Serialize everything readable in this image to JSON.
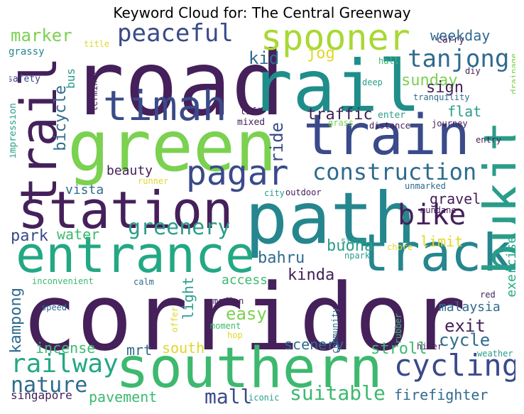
{
  "title": "Keyword Cloud for: The Central Greenway",
  "words": [
    {
      "text": "corridor",
      "color": "#45205a"
    },
    {
      "text": "road",
      "color": "#45205a"
    },
    {
      "text": "rail",
      "color": "#1f8e8a"
    },
    {
      "text": "path",
      "color": "#25868e"
    },
    {
      "text": "green",
      "color": "#7bd150"
    },
    {
      "text": "southern",
      "color": "#3db96f"
    },
    {
      "text": "train",
      "color": "#3a4a8a"
    },
    {
      "text": "station",
      "color": "#45205a"
    },
    {
      "text": "entrance",
      "color": "#23a884"
    },
    {
      "text": "track",
      "color": "#25868e"
    },
    {
      "text": "spooner",
      "color": "#a9d834"
    },
    {
      "text": "timah",
      "color": "#3a4a8a"
    },
    {
      "text": "pagar",
      "color": "#3a4a8a"
    },
    {
      "text": "bukit",
      "color": "#2a9d8a"
    },
    {
      "text": "trail",
      "color": "#45205a"
    },
    {
      "text": "construction",
      "color": "#2f6b8e"
    },
    {
      "text": "cycling",
      "color": "#3a4a8a"
    },
    {
      "text": "bike",
      "color": "#45205a"
    },
    {
      "text": "railway",
      "color": "#23a884"
    },
    {
      "text": "peaceful",
      "color": "#3a4a8a"
    },
    {
      "text": "greenery",
      "color": "#2a9d8a"
    },
    {
      "text": "tanjong",
      "color": "#2f6b8e"
    },
    {
      "text": "mall",
      "color": "#3a4a8a"
    },
    {
      "text": "suitable",
      "color": "#3db96f"
    },
    {
      "text": "nature",
      "color": "#2f6b8e"
    },
    {
      "text": "marker",
      "color": "#7bd150"
    },
    {
      "text": "kid",
      "color": "#2f6b8e"
    },
    {
      "text": "jog",
      "color": "#e0d72a"
    },
    {
      "text": "weekday",
      "color": "#2f6b8e"
    },
    {
      "text": "sunday",
      "color": "#7bd150"
    },
    {
      "text": "sign",
      "color": "#45205a"
    },
    {
      "text": "bus",
      "color": "#2a9d8a"
    },
    {
      "text": "ride",
      "color": "#3a4a8a"
    },
    {
      "text": "traffic",
      "color": "#45205a"
    },
    {
      "text": "flat",
      "color": "#2a9d8a"
    },
    {
      "text": "bicycle",
      "color": "#2f6b8e"
    },
    {
      "text": "beauty",
      "color": "#45205a"
    },
    {
      "text": "vista",
      "color": "#2f6b8e"
    },
    {
      "text": "gravel",
      "color": "#45205a"
    },
    {
      "text": "park",
      "color": "#3a4a8a"
    },
    {
      "text": "water",
      "color": "#3db96f"
    },
    {
      "text": "buona",
      "color": "#2a9d8a"
    },
    {
      "text": "limit",
      "color": "#e0d72a"
    },
    {
      "text": "bahru",
      "color": "#2f6b8e"
    },
    {
      "text": "kinda",
      "color": "#45205a"
    },
    {
      "text": "exercise",
      "color": "#23a884"
    },
    {
      "text": "light",
      "color": "#2a9d8a"
    },
    {
      "text": "access",
      "color": "#3db96f"
    },
    {
      "text": "easy",
      "color": "#7bd150"
    },
    {
      "text": "malaysia",
      "color": "#2f6b8e"
    },
    {
      "text": "exit",
      "color": "#45205a"
    },
    {
      "text": "kampong",
      "color": "#2f6b8e"
    },
    {
      "text": "mrt",
      "color": "#2f6b8e"
    },
    {
      "text": "south",
      "color": "#e0d72a"
    },
    {
      "text": "cycle",
      "color": "#2f6b8e"
    },
    {
      "text": "incense",
      "color": "#3db96f"
    },
    {
      "text": "scenery",
      "color": "#2f6b8e"
    },
    {
      "text": "stroll",
      "color": "#3db96f"
    },
    {
      "text": "pavement",
      "color": "#3db96f"
    },
    {
      "text": "firefighter",
      "color": "#2f6b8e"
    },
    {
      "text": "singapore",
      "color": "#45205a"
    },
    {
      "text": "carry",
      "color": "#45205a"
    },
    {
      "text": "grassy",
      "color": "#25868e"
    },
    {
      "text": "title",
      "color": "#e0d72a"
    },
    {
      "text": "hall",
      "color": "#3db96f"
    },
    {
      "text": "drainage",
      "color": "#7bd150"
    },
    {
      "text": "diy",
      "color": "#45205a"
    },
    {
      "text": "safety",
      "color": "#3a4a8a"
    },
    {
      "text": "terminal",
      "color": "#45205a"
    },
    {
      "text": "deep",
      "color": "#2a9d8a"
    },
    {
      "text": "tranquility",
      "color": "#2f6b8e"
    },
    {
      "text": "impression",
      "color": "#2a9d8a"
    },
    {
      "text": "lift",
      "color": "#45205a"
    },
    {
      "text": "mixed",
      "color": "#45205a"
    },
    {
      "text": "enter",
      "color": "#2a9d8a"
    },
    {
      "text": "grass",
      "color": "#7bd150"
    },
    {
      "text": "distance",
      "color": "#45205a"
    },
    {
      "text": "journey",
      "color": "#45205a"
    },
    {
      "text": "entry",
      "color": "#45205a"
    },
    {
      "text": "runner",
      "color": "#e0d72a"
    },
    {
      "text": "city",
      "color": "#2a9d8a"
    },
    {
      "text": "outdoor",
      "color": "#45205a"
    },
    {
      "text": "unmarked",
      "color": "#2f6b8e"
    },
    {
      "text": "mundane",
      "color": "#45205a"
    },
    {
      "text": "stone",
      "color": "#2a9d8a"
    },
    {
      "text": "npark",
      "color": "#2a9d8a"
    },
    {
      "text": "chore",
      "color": "#e0d72a"
    },
    {
      "text": "inconvenient",
      "color": "#3db96f"
    },
    {
      "text": "calm",
      "color": "#2f6b8e"
    },
    {
      "text": "red",
      "color": "#45205a"
    },
    {
      "text": "speed",
      "color": "#2f6b8e"
    },
    {
      "text": "offer",
      "color": "#e0d72a"
    },
    {
      "text": "median",
      "color": "#45205a"
    },
    {
      "text": "community",
      "color": "#2f6b8e"
    },
    {
      "text": "rubber",
      "color": "#3db96f"
    },
    {
      "text": "moment",
      "color": "#3db96f"
    },
    {
      "text": "hop",
      "color": "#e0d72a"
    },
    {
      "text": "hiker",
      "color": "#45205a"
    },
    {
      "text": "weather",
      "color": "#2a9d8a"
    },
    {
      "text": "iconic",
      "color": "#2a9d8a"
    }
  ]
}
